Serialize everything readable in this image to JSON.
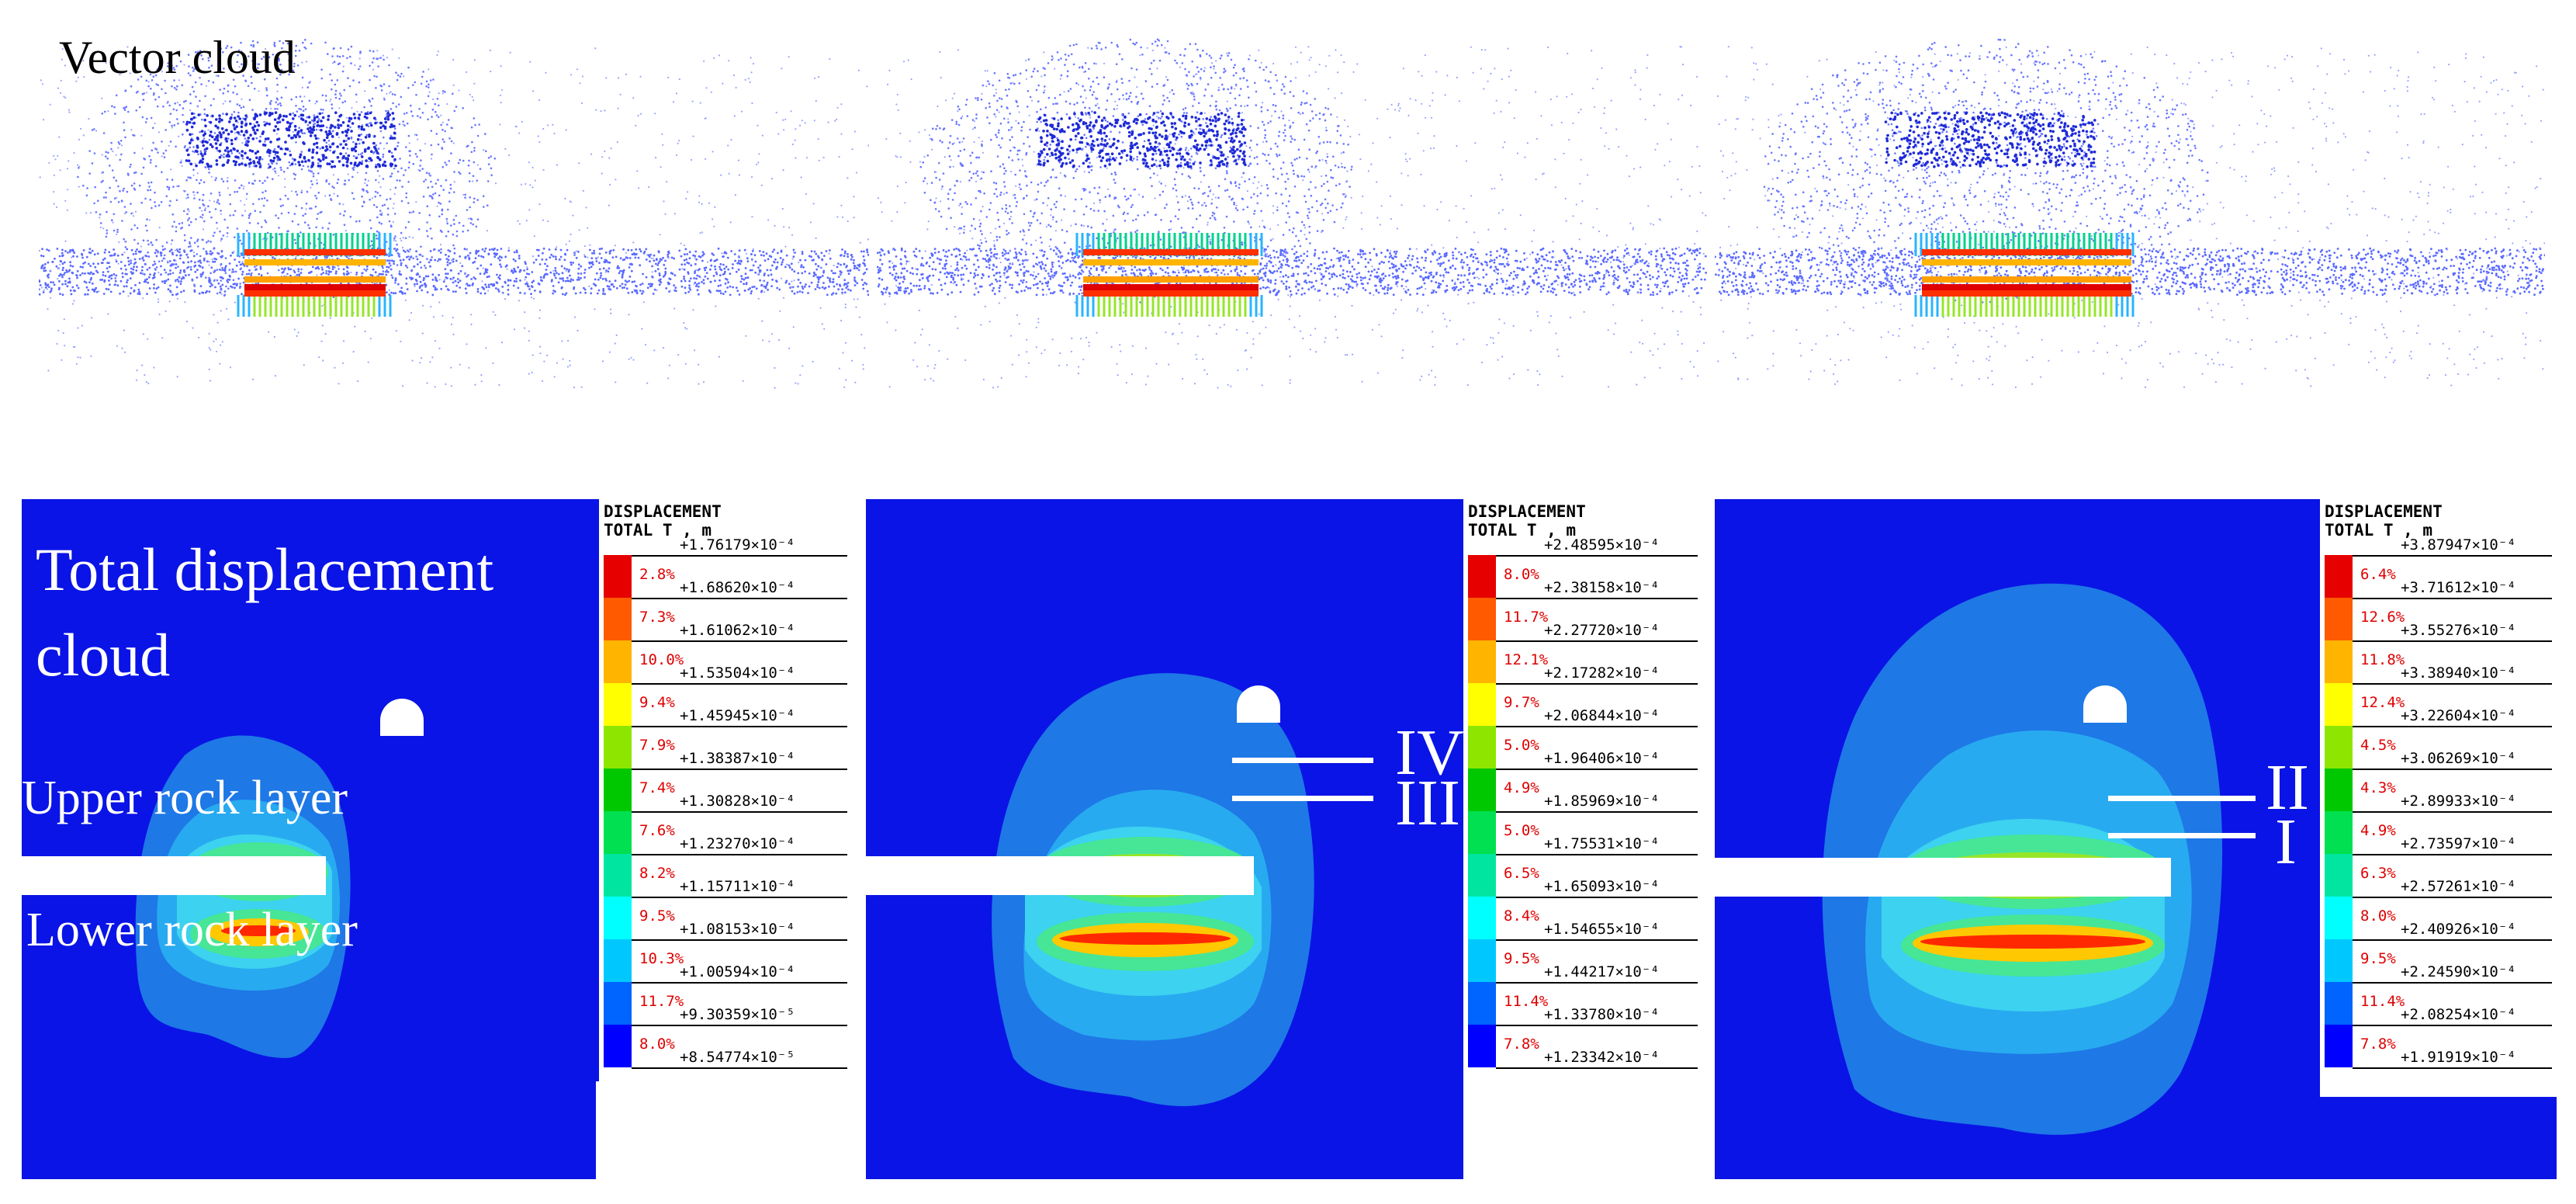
{
  "vector_title": "Vector cloud",
  "panel1": {
    "title_line1": "Total displacement",
    "title_line2": "cloud",
    "upper_label": "Upper rock layer",
    "lower_label": "Lower rock layer"
  },
  "panel2": {
    "marker_upper": "IV",
    "marker_lower": "III"
  },
  "panel3": {
    "marker_upper": "II",
    "marker_lower": "I"
  },
  "legends": [
    {
      "header1": "DISPLACEMENT",
      "header2": "TOTAL T , m",
      "values": [
        "+1.76179×10⁻⁴",
        "+1.68620×10⁻⁴",
        "+1.61062×10⁻⁴",
        "+1.53504×10⁻⁴",
        "+1.45945×10⁻⁴",
        "+1.38387×10⁻⁴",
        "+1.30828×10⁻⁴",
        "+1.23270×10⁻⁴",
        "+1.15711×10⁻⁴",
        "+1.08153×10⁻⁴",
        "+1.00594×10⁻⁴",
        "+9.30359×10⁻⁵",
        "+8.54774×10⁻⁵"
      ],
      "percents": [
        "2.8%",
        "7.3%",
        "10.0%",
        "9.4%",
        "7.9%",
        "7.4%",
        "7.6%",
        "8.2%",
        "9.5%",
        "10.3%",
        "11.7%",
        "8.0%"
      ]
    },
    {
      "header1": "DISPLACEMENT",
      "header2": "TOTAL T , m",
      "values": [
        "+2.48595×10⁻⁴",
        "+2.38158×10⁻⁴",
        "+2.27720×10⁻⁴",
        "+2.17282×10⁻⁴",
        "+2.06844×10⁻⁴",
        "+1.96406×10⁻⁴",
        "+1.85969×10⁻⁴",
        "+1.75531×10⁻⁴",
        "+1.65093×10⁻⁴",
        "+1.54655×10⁻⁴",
        "+1.44217×10⁻⁴",
        "+1.33780×10⁻⁴",
        "+1.23342×10⁻⁴"
      ],
      "percents": [
        "8.0%",
        "11.7%",
        "12.1%",
        "9.7%",
        "5.0%",
        "4.9%",
        "5.0%",
        "6.5%",
        "8.4%",
        "9.5%",
        "11.4%",
        "7.8%"
      ]
    },
    {
      "header1": "DISPLACEMENT",
      "header2": "TOTAL T , m",
      "values": [
        "+3.87947×10⁻⁴",
        "+3.71612×10⁻⁴",
        "+3.55276×10⁻⁴",
        "+3.38940×10⁻⁴",
        "+3.22604×10⁻⁴",
        "+3.06269×10⁻⁴",
        "+2.89933×10⁻⁴",
        "+2.73597×10⁻⁴",
        "+2.57261×10⁻⁴",
        "+2.40926×10⁻⁴",
        "+2.24590×10⁻⁴",
        "+2.08254×10⁻⁴",
        "+1.91919×10⁻⁴"
      ],
      "percents": [
        "6.4%",
        "12.6%",
        "11.8%",
        "12.4%",
        "4.5%",
        "4.3%",
        "4.9%",
        "6.3%",
        "8.0%",
        "9.5%",
        "11.4%",
        "7.8%"
      ]
    }
  ],
  "legend_colors": [
    "#e60000",
    "#ff5a00",
    "#ffb400",
    "#ffff00",
    "#8ee600",
    "#00c800",
    "#00e050",
    "#00e6a0",
    "#00ffff",
    "#00c8ff",
    "#0064ff",
    "#0000ff"
  ]
}
